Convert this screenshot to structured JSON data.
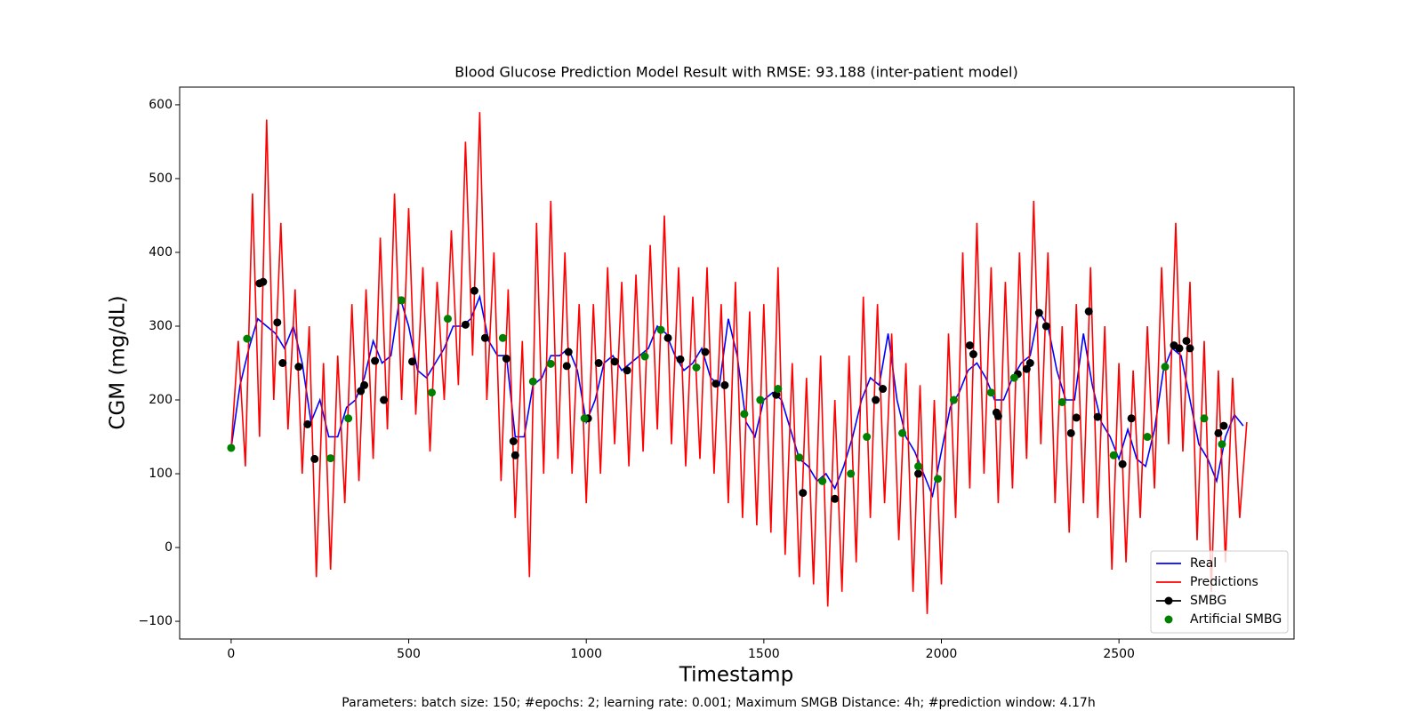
{
  "chart_data": {
    "type": "line",
    "title": "Blood Glucose Prediction Model Result with RMSE: 93.188 (inter-patient model)",
    "xlabel": "Timestamp",
    "ylabel": "CGM (mg/dL)",
    "footnote": "Parameters: batch size: 150; #epochs: 2; learning rate: 0.001; Maximum SMGB Distance: 4h; #prediction window: 4.17h",
    "xlim": [
      -145,
      2993
    ],
    "ylim": [
      -124,
      624
    ],
    "xticks": [
      0,
      500,
      1000,
      1500,
      2000,
      2500
    ],
    "yticks": [
      {
        "value": -100,
        "label": "−100"
      },
      0,
      100,
      200,
      300,
      400,
      500,
      600
    ],
    "legend": "lower right",
    "series": [
      {
        "name": "Real",
        "color": "#0000ff",
        "type": "line",
        "x": [
          0,
          25,
          50,
          75,
          100,
          125,
          150,
          175,
          200,
          225,
          250,
          275,
          300,
          325,
          350,
          375,
          400,
          425,
          450,
          475,
          500,
          525,
          550,
          575,
          600,
          625,
          650,
          675,
          700,
          725,
          750,
          775,
          800,
          825,
          850,
          875,
          900,
          925,
          950,
          975,
          1000,
          1025,
          1050,
          1075,
          1100,
          1125,
          1150,
          1175,
          1200,
          1225,
          1250,
          1275,
          1300,
          1325,
          1350,
          1375,
          1400,
          1425,
          1450,
          1475,
          1500,
          1525,
          1550,
          1575,
          1600,
          1625,
          1650,
          1675,
          1700,
          1725,
          1750,
          1775,
          1800,
          1825,
          1850,
          1875,
          1900,
          1925,
          1950,
          1975,
          2000,
          2025,
          2050,
          2075,
          2100,
          2125,
          2150,
          2175,
          2200,
          2225,
          2250,
          2275,
          2300,
          2325,
          2350,
          2375,
          2400,
          2425,
          2450,
          2475,
          2500,
          2525,
          2550,
          2575,
          2600,
          2625,
          2650,
          2675,
          2700,
          2725,
          2750,
          2775,
          2800,
          2825,
          2850
        ],
        "values": [
          135,
          220,
          270,
          310,
          300,
          290,
          270,
          300,
          250,
          170,
          200,
          150,
          150,
          190,
          200,
          230,
          280,
          250,
          260,
          340,
          300,
          240,
          230,
          250,
          270,
          300,
          300,
          310,
          340,
          280,
          260,
          260,
          150,
          150,
          220,
          230,
          260,
          260,
          270,
          240,
          170,
          200,
          250,
          260,
          240,
          250,
          260,
          270,
          300,
          290,
          260,
          240,
          250,
          270,
          230,
          220,
          310,
          260,
          170,
          150,
          200,
          210,
          200,
          160,
          120,
          110,
          90,
          100,
          80,
          110,
          150,
          200,
          230,
          220,
          290,
          200,
          150,
          130,
          100,
          70,
          130,
          190,
          210,
          240,
          250,
          230,
          200,
          200,
          230,
          250,
          260,
          320,
          300,
          240,
          200,
          200,
          290,
          220,
          170,
          150,
          120,
          160,
          120,
          110,
          160,
          240,
          270,
          260,
          200,
          140,
          120,
          90,
          150,
          180,
          165
        ]
      },
      {
        "name": "Predictions",
        "color": "#ff0000",
        "type": "line",
        "x": [
          0,
          20,
          40,
          60,
          80,
          100,
          120,
          140,
          160,
          180,
          200,
          220,
          240,
          260,
          280,
          300,
          320,
          340,
          360,
          380,
          400,
          420,
          440,
          460,
          480,
          500,
          520,
          540,
          560,
          580,
          600,
          620,
          640,
          660,
          680,
          700,
          720,
          740,
          760,
          780,
          800,
          820,
          840,
          860,
          880,
          900,
          920,
          940,
          960,
          980,
          1000,
          1020,
          1040,
          1060,
          1080,
          1100,
          1120,
          1140,
          1160,
          1180,
          1200,
          1220,
          1240,
          1260,
          1280,
          1300,
          1320,
          1340,
          1360,
          1380,
          1400,
          1420,
          1440,
          1460,
          1480,
          1500,
          1520,
          1540,
          1560,
          1580,
          1600,
          1620,
          1640,
          1660,
          1680,
          1700,
          1720,
          1740,
          1760,
          1780,
          1800,
          1820,
          1840,
          1860,
          1880,
          1900,
          1920,
          1940,
          1960,
          1980,
          2000,
          2020,
          2040,
          2060,
          2080,
          2100,
          2120,
          2140,
          2160,
          2180,
          2200,
          2220,
          2240,
          2260,
          2280,
          2300,
          2320,
          2340,
          2360,
          2380,
          2400,
          2420,
          2440,
          2460,
          2480,
          2500,
          2520,
          2540,
          2560,
          2580,
          2600,
          2620,
          2640,
          2660,
          2680,
          2700,
          2720,
          2740,
          2760,
          2780,
          2800,
          2820,
          2840,
          2860
        ],
        "values": [
          135,
          280,
          110,
          480,
          150,
          580,
          200,
          440,
          160,
          350,
          100,
          300,
          -40,
          250,
          -30,
          260,
          60,
          330,
          90,
          350,
          120,
          420,
          160,
          480,
          200,
          460,
          180,
          380,
          130,
          360,
          200,
          430,
          220,
          550,
          260,
          590,
          200,
          400,
          90,
          350,
          40,
          280,
          -40,
          440,
          100,
          470,
          120,
          400,
          100,
          330,
          60,
          330,
          100,
          380,
          140,
          360,
          110,
          370,
          130,
          410,
          160,
          450,
          140,
          380,
          110,
          340,
          120,
          380,
          100,
          330,
          60,
          360,
          40,
          320,
          30,
          330,
          20,
          380,
          -10,
          250,
          -40,
          230,
          -50,
          260,
          -80,
          200,
          -60,
          260,
          -20,
          340,
          40,
          330,
          60,
          290,
          10,
          250,
          -60,
          220,
          -90,
          200,
          -50,
          290,
          40,
          400,
          80,
          440,
          100,
          380,
          60,
          360,
          80,
          400,
          120,
          470,
          140,
          400,
          60,
          300,
          20,
          330,
          60,
          380,
          40,
          300,
          -30,
          250,
          -20,
          240,
          40,
          300,
          80,
          380,
          140,
          440,
          130,
          360,
          10,
          280,
          -60,
          240,
          -20,
          230,
          40,
          170
        ]
      },
      {
        "name": "SMBG",
        "color": "#000000",
        "type": "marker",
        "x": [
          80,
          90,
          130,
          145,
          190,
          215,
          235,
          365,
          375,
          405,
          430,
          510,
          660,
          685,
          715,
          775,
          795,
          800,
          945,
          950,
          1005,
          1035,
          1080,
          1115,
          1230,
          1265,
          1335,
          1365,
          1390,
          1535,
          1610,
          1700,
          1815,
          1835,
          1935,
          2080,
          2090,
          2155,
          2160,
          2215,
          2240,
          2250,
          2275,
          2295,
          2365,
          2380,
          2415,
          2440,
          2510,
          2535,
          2655,
          2670,
          2690,
          2700,
          2780,
          2795
        ],
        "values": [
          358,
          360,
          305,
          250,
          245,
          167,
          120,
          212,
          220,
          253,
          200,
          252,
          302,
          348,
          284,
          256,
          144,
          125,
          246,
          265,
          175,
          250,
          252,
          240,
          284,
          255,
          265,
          222,
          220,
          207,
          74,
          66,
          200,
          215,
          100,
          274,
          262,
          183,
          178,
          235,
          242,
          250,
          318,
          300,
          155,
          176,
          320,
          177,
          113,
          175,
          274,
          270,
          280,
          270,
          155,
          165
        ]
      },
      {
        "name": "Artificial SMBG",
        "color": "#008000",
        "type": "scatter",
        "x": [
          0,
          45,
          280,
          330,
          480,
          565,
          610,
          765,
          850,
          900,
          995,
          1165,
          1210,
          1310,
          1445,
          1490,
          1540,
          1600,
          1665,
          1745,
          1790,
          1890,
          1935,
          1990,
          2035,
          2140,
          2205,
          2340,
          2485,
          2580,
          2630,
          2740,
          2790
        ],
        "values": [
          135,
          283,
          121,
          175,
          335,
          210,
          310,
          284,
          225,
          249,
          175,
          259,
          295,
          244,
          181,
          200,
          215,
          122,
          90,
          100,
          150,
          155,
          110,
          93,
          200,
          210,
          230,
          197,
          125,
          150,
          245,
          175,
          140
        ]
      }
    ]
  }
}
